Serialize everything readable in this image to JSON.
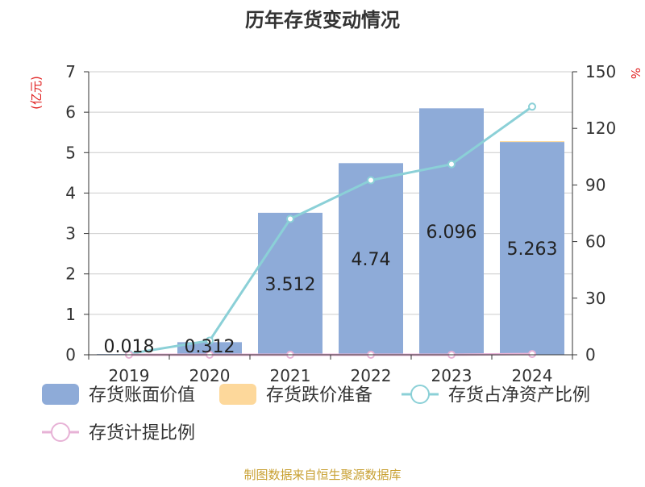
{
  "title": "历年存货变动情况",
  "units": {
    "left": "(亿元)",
    "right": "%"
  },
  "source": "制图数据来自恒生聚源数据库",
  "colors": {
    "bar": "#8eabd8",
    "reserve": "#fdd89b",
    "ratio": "#8bd0d7",
    "provision": "#e7b2d6",
    "axis": "#333333",
    "grid": "#cccccc"
  },
  "chart_data": {
    "type": "bar",
    "categories": [
      "2019",
      "2020",
      "2021",
      "2022",
      "2023",
      "2024"
    ],
    "ylim": [
      0,
      7
    ],
    "yticks": [
      0,
      1,
      2,
      3,
      4,
      5,
      6,
      7
    ],
    "y2lim": [
      0,
      150
    ],
    "y2ticks": [
      0,
      30,
      60,
      90,
      120,
      150
    ],
    "grid": true,
    "legend_position": "bottom",
    "series": [
      {
        "name": "存货账面价值",
        "type": "bar",
        "axis": "left",
        "values": [
          0.018,
          0.312,
          3.512,
          4.74,
          6.096,
          5.263
        ],
        "labels": [
          "0.018",
          "0.312",
          "3.512",
          "4.74",
          "6.096",
          "5.263"
        ]
      },
      {
        "name": "存货跌价准备",
        "type": "bar",
        "axis": "left",
        "values": [
          0,
          0,
          0,
          0,
          0,
          0.02
        ]
      },
      {
        "name": "存货占净资产比例",
        "type": "line",
        "axis": "right",
        "values": [
          0.5,
          7.5,
          72,
          92.5,
          101,
          131.5
        ]
      },
      {
        "name": "存货计提比例",
        "type": "line",
        "axis": "right",
        "values": [
          0,
          0,
          0,
          0,
          0,
          0.4
        ]
      }
    ]
  }
}
